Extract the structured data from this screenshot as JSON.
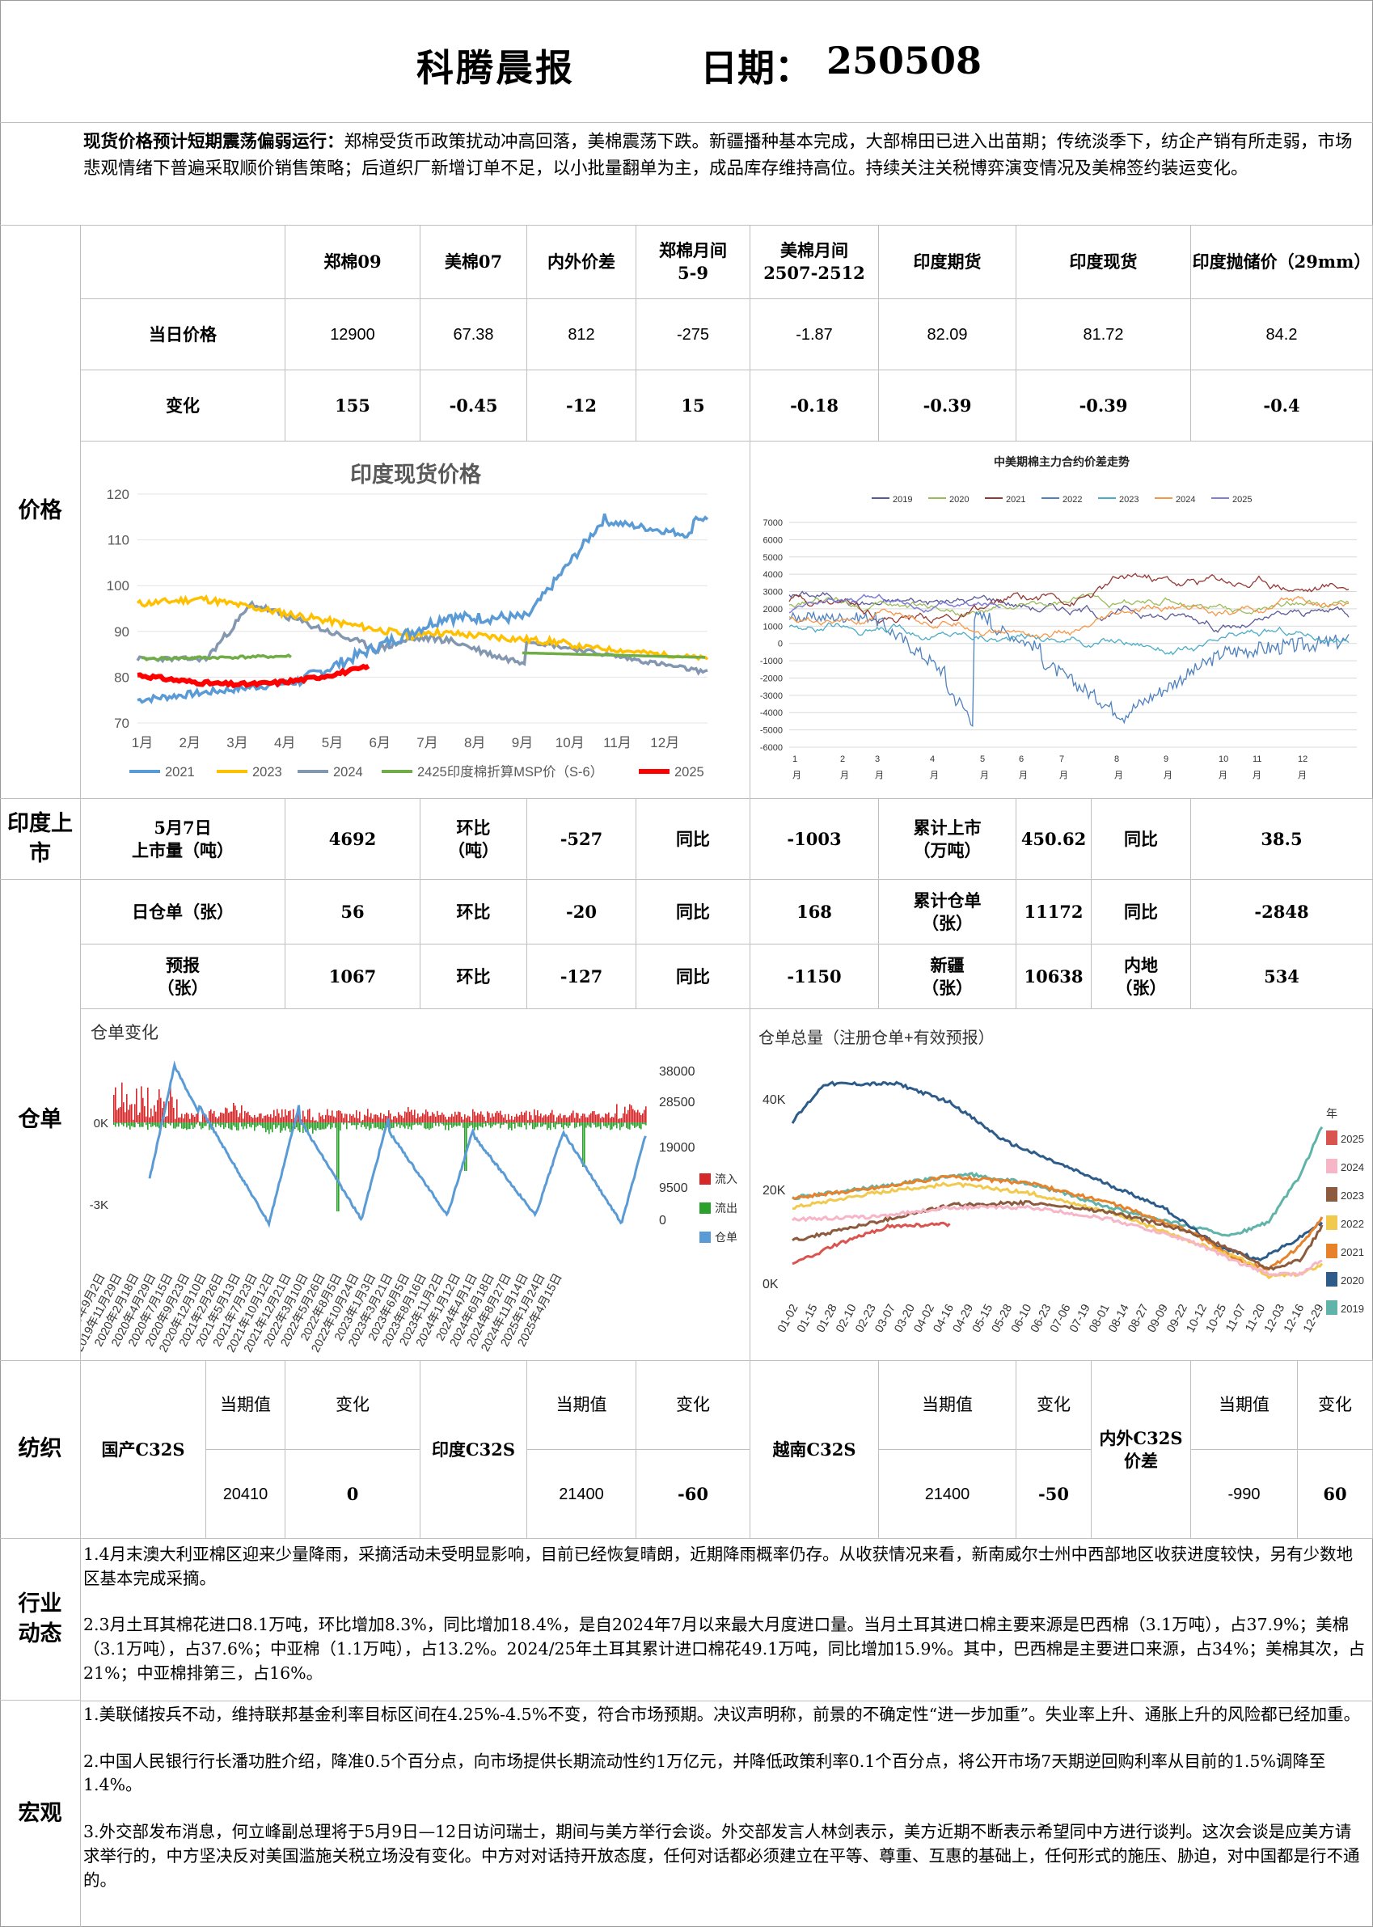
{
  "header": {
    "title": "科腾晨报",
    "date_label": "日期：",
    "date": "250508"
  },
  "summary": {
    "lead": "现货价格预计短期震荡偏弱运行：",
    "body": "郑棉受货币政策扰动冲高回落，美棉震荡下跌。新疆播种基本完成，大部棉田已进入出苗期；传统淡季下，纺企产销有所走弱，市场悲观情绪下普遍采取顺价销售策略；后道织厂新增订单不足，以小批量翻单为主，成品库存维持高位。持续关注关税博弈演变情况及美棉签约装运变化。"
  },
  "price_table": {
    "section": "价格",
    "headers": [
      "郑棉09",
      "美棉07",
      "内外价差",
      "郑棉月间\n5-9",
      "美棉月间\n2507-2512",
      "印度期货",
      "印度现货",
      "印度抛储价（29mm）"
    ],
    "row1_label": "当日价格",
    "row1": [
      "12900",
      "67.38",
      "812",
      "-275",
      "-1.87",
      "82.09",
      "81.72",
      "84.2"
    ],
    "row2_label": "变化",
    "row2": [
      "155",
      "-0.45",
      "-12",
      "15",
      "-0.18",
      "-0.39",
      "-0.39",
      "-0.4"
    ]
  },
  "chart_india_spot": {
    "title": "印度现货价格",
    "y_ticks": [
      "120",
      "110",
      "100",
      "90",
      "80",
      "70"
    ],
    "x_ticks": [
      "1月",
      "2月",
      "3月",
      "4月",
      "5月",
      "6月",
      "7月",
      "8月",
      "9月",
      "10月",
      "11月",
      "12月"
    ],
    "legend": [
      "2021",
      "2023",
      "2024",
      "2425印度棉折算MSP价（S-6）",
      "2025"
    ],
    "colors": [
      "#5b9bd5",
      "#ffc000",
      "#8497b0",
      "#70ad47",
      "#ff0000"
    ]
  },
  "chart_spread": {
    "title": "中美期棉主力合约价差走势",
    "legend": [
      "2019",
      "2020",
      "2021",
      "2022",
      "2023",
      "2024",
      "2025"
    ],
    "colors": [
      "#5a5a9a",
      "#9bbb59",
      "#953735",
      "#4f81bd",
      "#4bacc6",
      "#f79646",
      "#7f7fd5"
    ],
    "y_ticks": [
      "7000",
      "6000",
      "5000",
      "4000",
      "3000",
      "2000",
      "1000",
      "0",
      "-1000",
      "-2000",
      "-3000",
      "-4000",
      "-5000",
      "-6000"
    ],
    "x_ticks": [
      "1",
      "2",
      "3",
      "4",
      "5",
      "6",
      "7",
      "8",
      "9",
      "10",
      "11",
      "12"
    ],
    "x_unit": "月"
  },
  "india_market": {
    "section": "印度上市",
    "label": "5月7日\n上市量（吨）",
    "value": "4692",
    "hb_label": "环比\n（吨）",
    "hb_value": "-527",
    "tb_label": "同比",
    "tb_value": "-1003",
    "cum_label": "累计上市\n（万吨）",
    "cum_value": "450.62",
    "cum_tb_label": "同比",
    "cum_tb_value": "38.5"
  },
  "warehouse_table": {
    "section": "仓单",
    "r1": {
      "label": "日仓单（张）",
      "value": "56",
      "hb_label": "环比",
      "hb": "-20",
      "tb_label": "同比",
      "tb": "168",
      "cum_label": "累计仓单\n（张）",
      "cum": "11172",
      "cum_tb_label": "同比",
      "cum_tb": "-2848"
    },
    "r2": {
      "label": "预报\n（张）",
      "value": "1067",
      "hb_label": "环比",
      "hb": "-127",
      "tb_label": "同比",
      "tb": "-1150",
      "xj_label": "新疆\n（张）",
      "xj": "10638",
      "nd_label": "内地\n（张）",
      "nd": "534"
    }
  },
  "chart_warrant_change": {
    "title": "仓单变化",
    "left_ticks": [
      "0K",
      "-3K"
    ],
    "right_ticks": [
      "38000",
      "28500",
      "19000",
      "9500",
      "0"
    ],
    "legend": [
      "流入",
      "流出",
      "仓单"
    ],
    "colors": [
      "#d62728",
      "#2ca02c",
      "#5b9bd5"
    ],
    "x_ticks": [
      "2019年9月2日",
      "2019年11月29日",
      "2020年2月18日",
      "2020年4月29日",
      "2020年7月15日",
      "2020年9月23日",
      "2020年12月10日",
      "2021年2月26日",
      "2021年5月13日",
      "2021年7月23日",
      "2021年10月12日",
      "2021年12月21日",
      "2022年3月10日",
      "2022年5月26日",
      "2022年8月5日",
      "2022年10月24日",
      "2023年1月3日",
      "2023年3月21日",
      "2023年6月5日",
      "2023年8月16日",
      "2023年11月2日",
      "2024年1月12日",
      "2024年4月1日",
      "2024年6月18日",
      "2024年8月27日",
      "2024年11月14日",
      "2025年1月24日",
      "2025年4月15日"
    ]
  },
  "chart_warrant_total": {
    "title": "仓单总量（注册仓单+有效预报）",
    "y_ticks": [
      "40K",
      "20K",
      "0K"
    ],
    "legend_title": "年",
    "legend": [
      "2025",
      "2024",
      "2023",
      "2022",
      "2021",
      "2020",
      "2019"
    ],
    "colors": [
      "#d9534f",
      "#f7b6c8",
      "#8c5a3c",
      "#f0c94d",
      "#e8822a",
      "#2e5c8a",
      "#5fb3a8"
    ],
    "x_ticks": [
      "01-02",
      "01-15",
      "01-28",
      "02-10",
      "02-23",
      "03-07",
      "03-20",
      "04-02",
      "04-16",
      "04-29",
      "05-15",
      "05-28",
      "06-10",
      "06-23",
      "07-06",
      "07-19",
      "08-01",
      "08-14",
      "08-27",
      "09-09",
      "09-22",
      "10-12",
      "10-25",
      "11-07",
      "11-20",
      "12-03",
      "12-16",
      "12-29"
    ]
  },
  "yarn": {
    "section": "纺织",
    "sub_cur": "当期值",
    "sub_chg": "变化",
    "items": [
      {
        "label": "国产C32S",
        "value": "20410",
        "change": "0"
      },
      {
        "label": "印度C32S",
        "value": "21400",
        "change": "-60"
      },
      {
        "label": "越南C32S",
        "value": "21400",
        "change": "-50"
      },
      {
        "label": "内外C32S\n价差",
        "value": "-990",
        "change": "60"
      }
    ]
  },
  "industry": {
    "section": "行业动态",
    "p1": "1.4月末澳大利亚棉区迎来少量降雨，采摘活动未受明显影响，目前已经恢复晴朗，近期降雨概率仍存。从收获情况来看，新南威尔士州中西部地区收获进度较快，另有少数地区基本完成采摘。",
    "p2": "2.3月土耳其棉花进口8.1万吨，环比增加8.3%，同比增加18.4%，是自2024年7月以来最大月度进口量。当月土耳其进口棉主要来源是巴西棉（3.1万吨），占37.9%；美棉（3.1万吨），占37.6%；中亚棉（1.1万吨），占13.2%。2024/25年土耳其累计进口棉花49.1万吨，同比增加15.9%。其中，巴西棉是主要进口来源，占34%；美棉其次，占21%；中亚棉排第三，占16%。"
  },
  "macro": {
    "section": "宏观",
    "p1": "1.美联储按兵不动，维持联邦基金利率目标区间在4.25%-4.5%不变，符合市场预期。决议声明称，前景的不确定性“进一步加重”。失业率上升、通胀上升的风险都已经加重。",
    "p2": "2.中国人民银行行长潘功胜介绍，降准0.5个百分点，向市场提供长期流动性约1万亿元，并降低政策利率0.1个百分点，将公开市场7天期逆回购利率从目前的1.5%调降至1.4%。",
    "p3": "3.外交部发布消息，何立峰副总理将于5月9日—12日访问瑞士，期间与美方举行会谈。外交部发言人林剑表示，美方近期不断表示希望同中方进行谈判。这次会谈是应美方请求举行的，中方坚决反对美国滥施关税立场没有变化。中方对对话持开放态度，任何对话都必须建立在平等、尊重、互惠的基础上，任何形式的施压、胁迫，对中国都是行不通的。"
  }
}
